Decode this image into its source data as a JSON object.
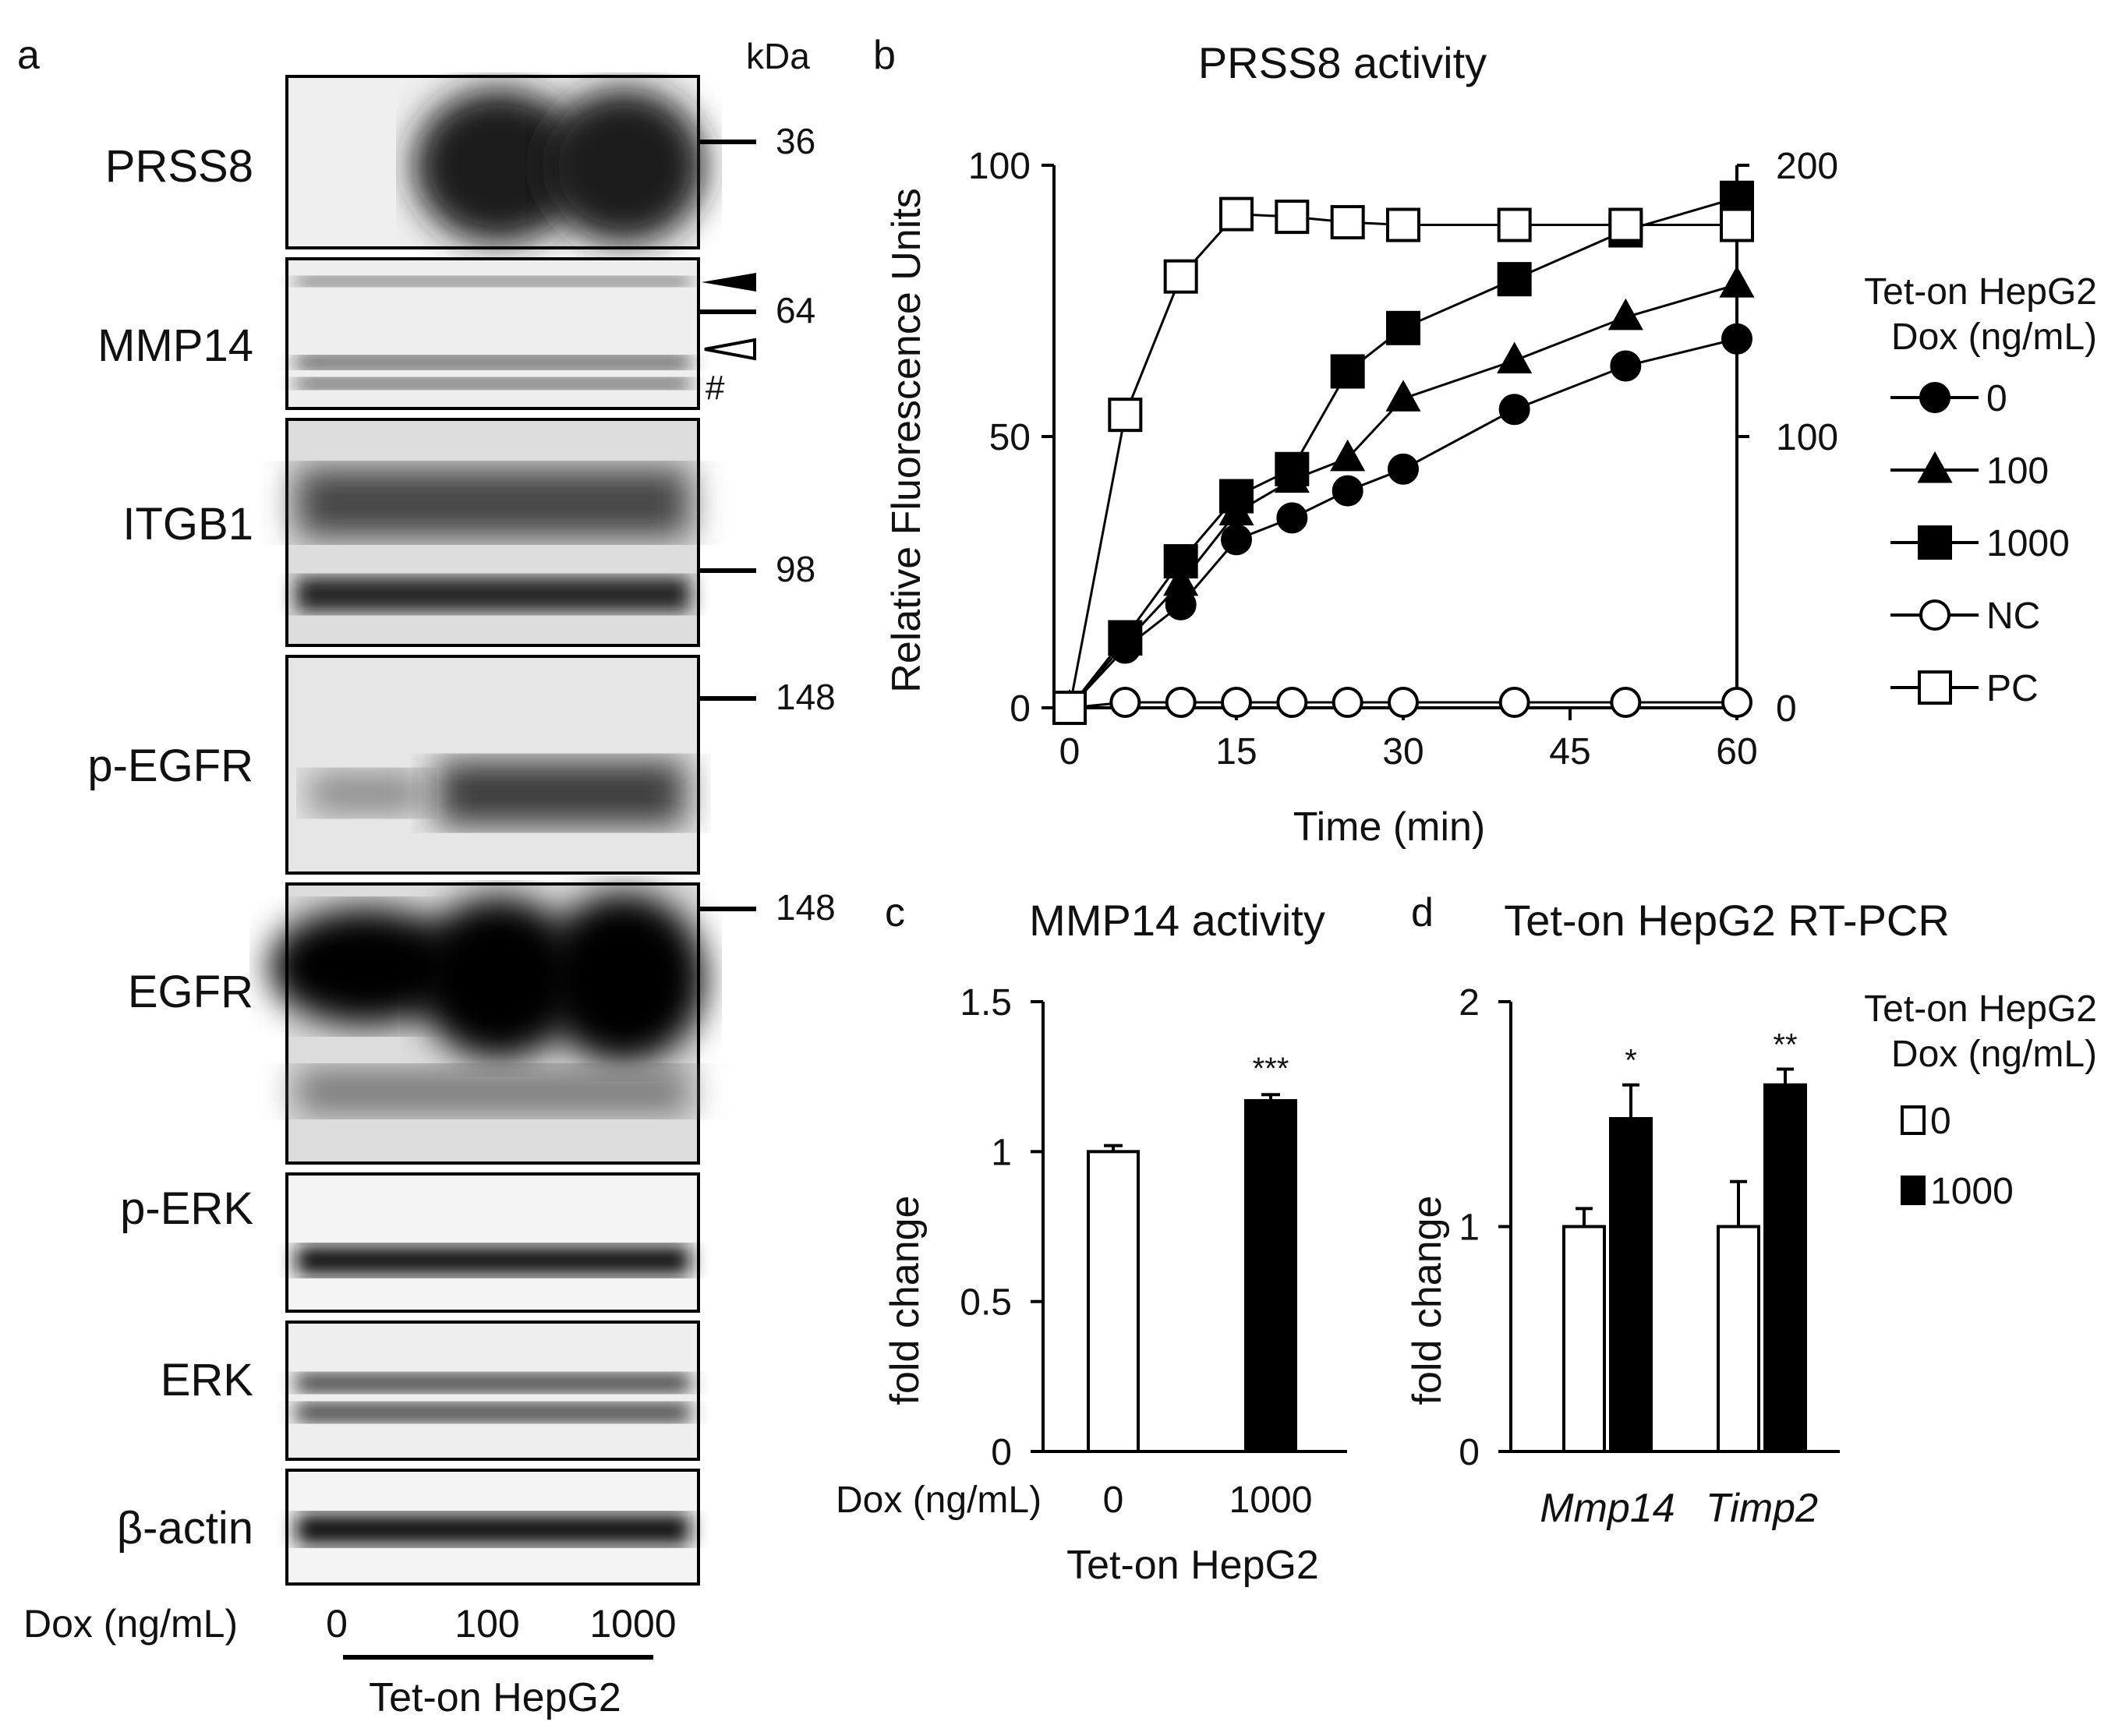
{
  "panel_a": {
    "letter": "a",
    "kda_label": "kDa",
    "blots": [
      "PRSS8",
      "MMP14",
      "ITGB1",
      "p-EGFR",
      "EGFR",
      "p-ERK",
      "ERK",
      "β-actin"
    ],
    "markers": {
      "m36": "36",
      "m64": "64",
      "m98": "98",
      "m148a": "148",
      "m148b": "148"
    },
    "hash_symbol": "#",
    "dox_label": "Dox (ng/mL)",
    "doses": [
      "0",
      "100",
      "1000"
    ],
    "cell_line": "Tet-on HepG2",
    "band_color": "#1a1a1a"
  },
  "panel_b": {
    "letter": "b"
  },
  "panel_c": {
    "letter": "c",
    "dox_label": "Dox (ng/mL)",
    "xgroup_label": "Tet-on HepG2"
  },
  "panel_d": {
    "letter": "d"
  },
  "chart_data": [
    {
      "type": "line",
      "title": "PRSS8 activity",
      "xlabel": "Time (min)",
      "ylabel": "Relative Fluorescence Units",
      "xlim": [
        0,
        60
      ],
      "xticks": [
        0,
        15,
        30,
        45,
        60
      ],
      "ylim": [
        0,
        100
      ],
      "yticks": [
        0,
        50,
        100
      ],
      "y2lim": [
        0,
        200
      ],
      "y2ticks": [
        0,
        100,
        200
      ],
      "x": [
        0,
        5,
        10,
        15,
        20,
        25,
        30,
        40,
        50,
        60
      ],
      "legend_title": [
        "Tet-on HepG2",
        "Dox (ng/mL)"
      ],
      "legend_position": "right",
      "series": [
        {
          "name": "0",
          "marker": "circle-filled",
          "values": [
            0,
            11,
            19,
            31,
            35,
            40,
            44,
            55,
            63,
            68
          ]
        },
        {
          "name": "100",
          "marker": "triangle-filled",
          "values": [
            0,
            12,
            23,
            36,
            42,
            46,
            57,
            64,
            72,
            78
          ]
        },
        {
          "name": "1000",
          "marker": "square-filled",
          "values": [
            0,
            13,
            27,
            39,
            44,
            62,
            70,
            79,
            88,
            94
          ]
        },
        {
          "name": "NC",
          "marker": "circle-open",
          "values": [
            0,
            1,
            1,
            1,
            1,
            1,
            1,
            1,
            1,
            1
          ]
        },
        {
          "name": "PC",
          "marker": "square-open",
          "axis": "right",
          "values": [
            0,
            108,
            159,
            182,
            181,
            179,
            178,
            178,
            178,
            178
          ]
        }
      ]
    },
    {
      "type": "bar",
      "title": "MMP14 activity",
      "ylabel": "fold change",
      "ylim": [
        0,
        1.5
      ],
      "yticks": [
        "0",
        "0.5",
        "1",
        "1.5"
      ],
      "categories": [
        "0",
        "1000"
      ],
      "values": [
        1.0,
        1.17
      ],
      "errors": [
        0.02,
        0.02
      ],
      "significance": [
        "",
        "***"
      ],
      "colors": [
        "#ffffff",
        "#000000"
      ]
    },
    {
      "type": "bar",
      "title": "Tet-on HepG2 RT-PCR",
      "ylabel": "fold change",
      "ylim": [
        0,
        2
      ],
      "yticks": [
        "0",
        "1",
        "2"
      ],
      "categories": [
        "Mmp14",
        "Timp2"
      ],
      "legend_title": [
        "Tet-on HepG2",
        "Dox (ng/mL)"
      ],
      "legend_position": "top-right",
      "series": [
        {
          "name": "0",
          "color": "#ffffff",
          "values": [
            1.0,
            1.0
          ],
          "errors": [
            0.08,
            0.2
          ],
          "significance": [
            "",
            ""
          ]
        },
        {
          "name": "1000",
          "color": "#000000",
          "values": [
            1.48,
            1.63
          ],
          "errors": [
            0.15,
            0.07
          ],
          "significance": [
            "*",
            "**"
          ]
        }
      ]
    }
  ]
}
